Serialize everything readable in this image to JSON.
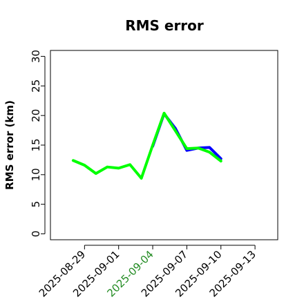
{
  "chart_data": {
    "type": "line",
    "title": "RMS error",
    "xlabel": "",
    "ylabel": "RMS error (km)",
    "x_axis_type": "date",
    "xlim": [
      "2025-08-26",
      "2025-09-15"
    ],
    "ylim": [
      -1,
      31
    ],
    "y_ticks": [
      0,
      5,
      10,
      15,
      20,
      25,
      30
    ],
    "x_ticks": [
      {
        "label": "2025-08-29",
        "date": "2025-08-29",
        "color": "#000000"
      },
      {
        "label": "2025-09-01",
        "date": "2025-09-01",
        "color": "#000000"
      },
      {
        "label": "2025-09-04",
        "date": "2025-09-04",
        "color": "#228B22"
      },
      {
        "label": "2025-09-07",
        "date": "2025-09-07",
        "color": "#000000"
      },
      {
        "label": "2025-09-10",
        "date": "2025-09-10",
        "color": "#000000"
      },
      {
        "label": "2025-09-13",
        "date": "2025-09-13",
        "color": "#000000"
      }
    ],
    "grid": false,
    "series": [
      {
        "color": "#0000ff",
        "points": [
          {
            "x": "2025-09-04",
            "y": 14.8
          },
          {
            "x": "2025-09-05",
            "y": 20.3
          },
          {
            "x": "2025-09-06",
            "y": 17.8
          },
          {
            "x": "2025-09-07",
            "y": 14.1
          },
          {
            "x": "2025-09-08",
            "y": 14.5
          },
          {
            "x": "2025-09-09",
            "y": 14.6
          },
          {
            "x": "2025-09-10",
            "y": 12.7
          }
        ]
      },
      {
        "color": "#00ff00",
        "points": [
          {
            "x": "2025-08-28",
            "y": 12.4
          },
          {
            "x": "2025-08-29",
            "y": 11.6
          },
          {
            "x": "2025-08-30",
            "y": 10.2
          },
          {
            "x": "2025-08-31",
            "y": 11.3
          },
          {
            "x": "2025-09-01",
            "y": 11.1
          },
          {
            "x": "2025-09-02",
            "y": 11.7
          },
          {
            "x": "2025-09-03",
            "y": 9.4
          },
          {
            "x": "2025-09-04",
            "y": 15.0
          },
          {
            "x": "2025-09-05",
            "y": 20.4
          },
          {
            "x": "2025-09-06",
            "y": 17.4
          },
          {
            "x": "2025-09-07",
            "y": 14.4
          },
          {
            "x": "2025-09-08",
            "y": 14.5
          },
          {
            "x": "2025-09-09",
            "y": 13.8
          },
          {
            "x": "2025-09-10",
            "y": 12.3
          }
        ]
      }
    ]
  }
}
